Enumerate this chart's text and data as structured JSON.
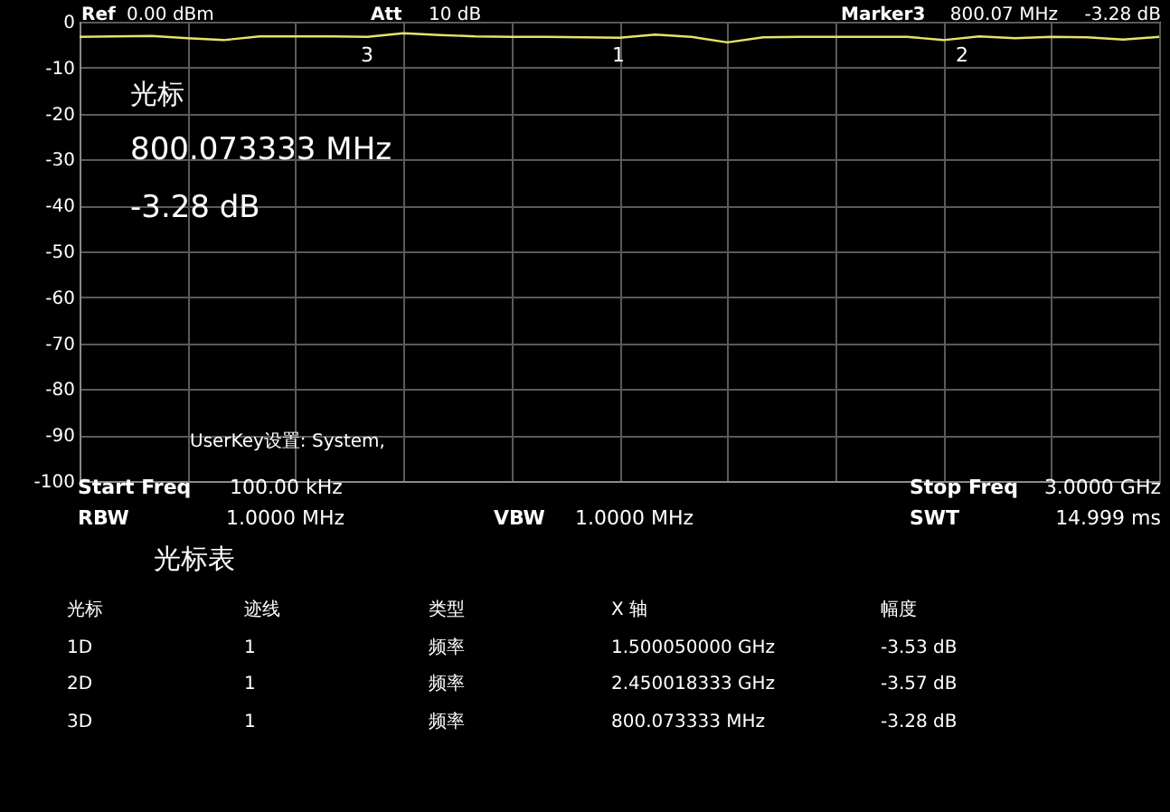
{
  "chart_data": {
    "type": "line",
    "categories": [
      null,
      null,
      null,
      null,
      null,
      null,
      null,
      null,
      null,
      null,
      null,
      null,
      null,
      null,
      null,
      null,
      null,
      null,
      null,
      null,
      null,
      null,
      null,
      null,
      null,
      null,
      null,
      null,
      null,
      null,
      null
    ],
    "series": [
      {
        "color": "#e6e36a",
        "values": [
          -3.3,
          -3.2,
          -3.1,
          -3.6,
          -4.0,
          -3.2,
          -3.2,
          -3.2,
          -3.3,
          -2.5,
          -2.9,
          -3.2,
          -3.3,
          -3.3,
          -3.4,
          -3.5,
          -2.8,
          -3.3,
          -4.5,
          -3.4,
          -3.3,
          -3.3,
          -3.3,
          -3.3,
          -4.0,
          -3.2,
          -3.6,
          -3.3,
          -3.4,
          -3.9,
          -3.3
        ]
      }
    ],
    "ylim": [
      -100,
      0
    ],
    "yticks": [
      -100,
      -90,
      -80,
      -70,
      -60,
      -50,
      -40,
      -30,
      -20,
      -10,
      0
    ],
    "tick_labels": "y",
    "grid": true,
    "annotations": [
      "3",
      "1",
      "2",
      "Ref",
      "0.00 dBm",
      "Att",
      "10 dB",
      "Marker3",
      "800.07 MHz",
      "-3.28 dB",
      "光标",
      "800.073333 MHz",
      "-3.28 dB",
      "UserKey设置:  System,",
      "Start Freq",
      "100.00 kHz",
      "Stop Freq",
      "3.0000 GHz",
      "RBW",
      "1.0000 MHz",
      "VBW",
      "1.0000 MHz",
      "SWT",
      "14.999 ms",
      "光标表",
      "光标",
      "迹线",
      "类型",
      "X 轴",
      "幅度",
      "1D",
      "1",
      "频率",
      "1.500050000 GHz",
      "-3.53 dB",
      "2D",
      "1",
      "频率",
      "2.450018333 GHz",
      "-3.57 dB",
      "3D",
      "1",
      "频率",
      "800.073333 MHz",
      "-3.28 dB"
    ]
  }
}
